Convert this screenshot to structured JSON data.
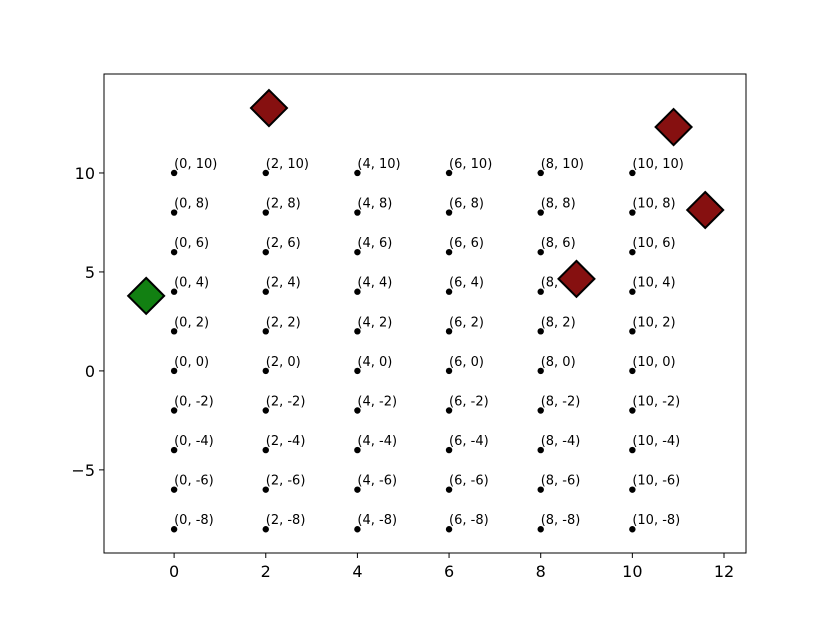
{
  "chart_data": {
    "type": "scatter",
    "xlim": [
      -1.53,
      12.48
    ],
    "ylim": [
      -9.2,
      15.0
    ],
    "xticks": [
      0,
      2,
      4,
      6,
      8,
      10,
      12
    ],
    "yticks": [
      {
        "value": -5,
        "label": "−5"
      },
      0,
      5,
      10
    ],
    "series": [
      {
        "color": "#000000",
        "marker": "dot",
        "x": [
          0,
          0,
          0,
          0,
          0,
          0,
          0,
          0,
          0,
          0,
          2,
          2,
          2,
          2,
          2,
          2,
          2,
          2,
          2,
          2,
          4,
          4,
          4,
          4,
          4,
          4,
          4,
          4,
          4,
          4,
          6,
          6,
          6,
          6,
          6,
          6,
          6,
          6,
          6,
          6,
          8,
          8,
          8,
          8,
          8,
          8,
          8,
          8,
          8,
          8,
          10,
          10,
          10,
          10,
          10,
          10,
          10,
          10,
          10,
          10
        ],
        "values": [
          -8,
          -6,
          -4,
          -2,
          0,
          2,
          4,
          6,
          8,
          10,
          -8,
          -6,
          -4,
          -2,
          0,
          2,
          4,
          6,
          8,
          10,
          -8,
          -6,
          -4,
          -2,
          0,
          2,
          4,
          6,
          8,
          10,
          -8,
          -6,
          -4,
          -2,
          0,
          2,
          4,
          6,
          8,
          10,
          -8,
          -6,
          -4,
          -2,
          0,
          2,
          4,
          6,
          8,
          10,
          -8,
          -6,
          -4,
          -2,
          0,
          2,
          4,
          6,
          8,
          10
        ],
        "labels": [
          "(0, -8)",
          "(0, -6)",
          "(0, -4)",
          "(0, -2)",
          "(0, 0)",
          "(0, 2)",
          "(0, 4)",
          "(0, 6)",
          "(0, 8)",
          "(0, 10)",
          "(2, -8)",
          "(2, -6)",
          "(2, -4)",
          "(2, -2)",
          "(2, 0)",
          "(2, 2)",
          "(2, 4)",
          "(2, 6)",
          "(2, 8)",
          "(2, 10)",
          "(4, -8)",
          "(4, -6)",
          "(4, -4)",
          "(4, -2)",
          "(4, 0)",
          "(4, 2)",
          "(4, 4)",
          "(4, 6)",
          "(4, 8)",
          "(4, 10)",
          "(6, -8)",
          "(6, -6)",
          "(6, -4)",
          "(6, -2)",
          "(6, 0)",
          "(6, 2)",
          "(6, 4)",
          "(6, 6)",
          "(6, 8)",
          "(6, 10)",
          "(8, -8)",
          "(8, -6)",
          "(8, -4)",
          "(8, -2)",
          "(8, 0)",
          "(8, 2)",
          "(8, 4)",
          "(8, 6)",
          "(8, 8)",
          "(8, 10)",
          "(10, -8)",
          "(10, -6)",
          "(10, -4)",
          "(10, -2)",
          "(10, 0)",
          "(10, 2)",
          "(10, 4)",
          "(10, 6)",
          "(10, 8)",
          "(10, 10)"
        ]
      },
      {
        "color": "#861010",
        "marker": "diamond",
        "x": [
          2.07,
          10.9,
          11.59,
          8.78
        ],
        "values": [
          13.28,
          12.32,
          8.13,
          4.65
        ]
      },
      {
        "color": "#128012",
        "marker": "diamond",
        "x": [
          -0.61
        ],
        "values": [
          3.79
        ]
      }
    ]
  }
}
